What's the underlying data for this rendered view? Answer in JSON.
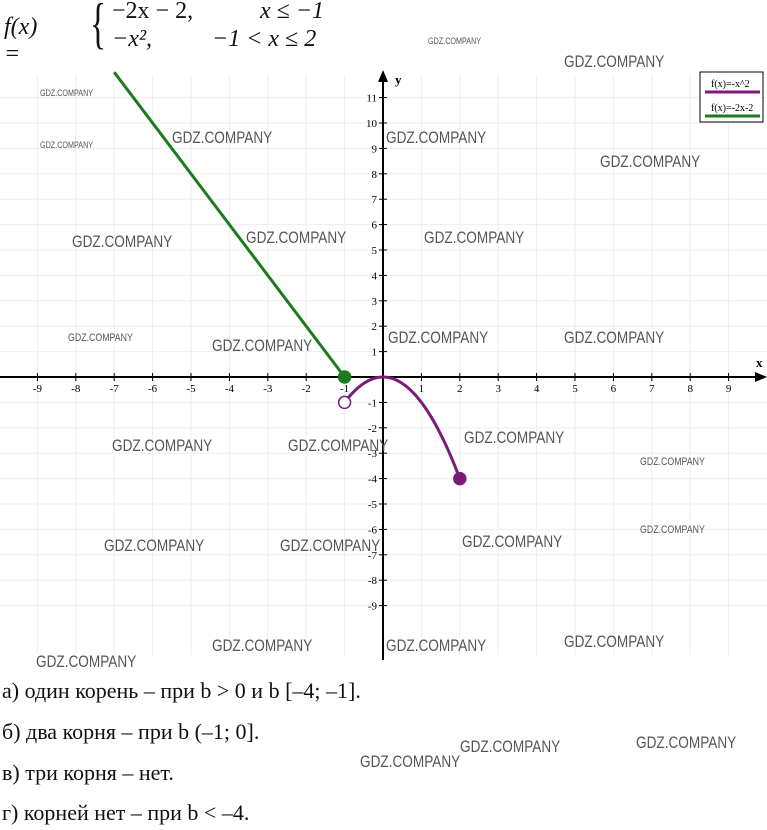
{
  "formula": {
    "lhs": "f(x) =",
    "case1_expr": "−2x − 2,",
    "case1_cond": "x ≤ −1",
    "case2_expr": "−x²,",
    "case2_cond": "−1 < x ≤ 2"
  },
  "chart_data": {
    "type": "line",
    "title": "",
    "xlabel": "x",
    "ylabel": "y",
    "xlim": [
      -10,
      10
    ],
    "ylim": [
      -10,
      12
    ],
    "xticks": [
      -9,
      -8,
      -7,
      -6,
      -5,
      -4,
      -3,
      -2,
      -1,
      1,
      2,
      3,
      4,
      5,
      6,
      7,
      8,
      9
    ],
    "yticks": [
      -9,
      -8,
      -7,
      -6,
      -5,
      -4,
      -3,
      -2,
      -1,
      1,
      2,
      3,
      4,
      5,
      6,
      7,
      8,
      9,
      10,
      11
    ],
    "grid": true,
    "legend_placement": "top-right",
    "series": [
      {
        "name": "f(x)=-x^2",
        "color": "#7b1a7b",
        "domain": [
          -1,
          2
        ],
        "formula": "-x^2",
        "points": [
          [
            -1,
            -1
          ],
          [
            -0.5,
            -0.25
          ],
          [
            0,
            0
          ],
          [
            0.5,
            -0.25
          ],
          [
            1,
            -1
          ],
          [
            1.5,
            -2.25
          ],
          [
            2,
            -4
          ]
        ],
        "endpoints": [
          {
            "x": -1,
            "y": -1,
            "filled": false
          },
          {
            "x": 2,
            "y": -4,
            "filled": true
          }
        ]
      },
      {
        "name": "f(x)=-2x-2",
        "color": "#1e7a1e",
        "domain": [
          -7,
          -1
        ],
        "formula": "-2x-2",
        "points": [
          [
            -7,
            12
          ],
          [
            -1,
            0
          ]
        ],
        "endpoints": [
          {
            "x": -1,
            "y": 0,
            "filled": true
          }
        ]
      }
    ]
  },
  "answers": [
    "а) один корень – при b > 0 и b [–4; –1].",
    "б) два корня – при b (–1; 0].",
    "в) три корня – нет.",
    "г) корней нет – при b < –4."
  ],
  "watermark": "GDZ.COMPANY"
}
